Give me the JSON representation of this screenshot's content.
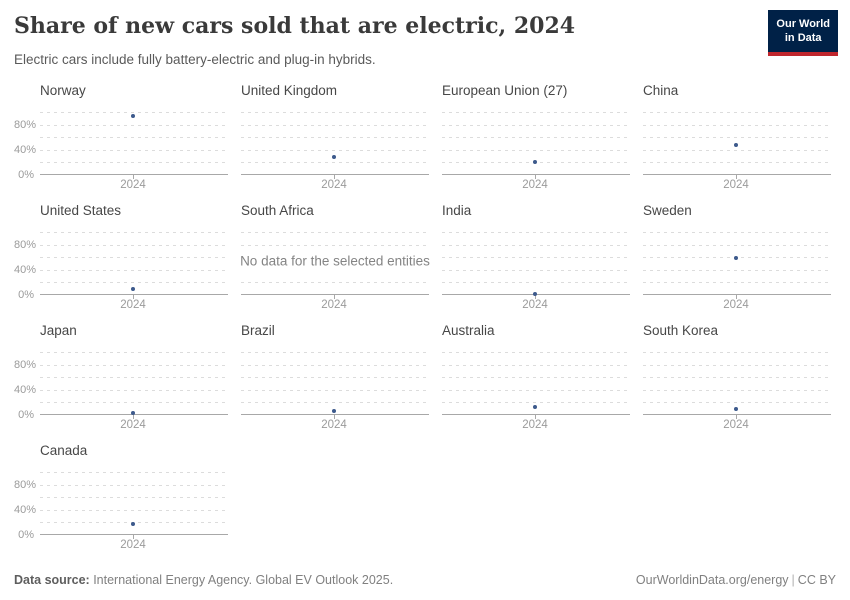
{
  "header": {
    "title": "Share of new cars sold that are electric, 2024",
    "subtitle": "Electric cars include fully battery-electric and plug-in hybrids.",
    "logo": {
      "line1": "Our World",
      "line2": "in Data",
      "bg": "#002147",
      "accent": "#c0262d"
    }
  },
  "chart_data": {
    "type": "scatter",
    "title": "Share of new cars sold that are electric, 2024",
    "x": [
      "2024"
    ],
    "xlabel": "",
    "ylabel": "",
    "ylim": [
      0,
      100
    ],
    "grid": "dashed, every 20%",
    "yticks": [
      {
        "label": "80%",
        "value": 80
      },
      {
        "label": "40%",
        "value": 40
      },
      {
        "label": "0%",
        "value": 0
      }
    ],
    "no_data_text": "No data for the selected entities",
    "facets": [
      {
        "title": "Norway",
        "year": "2024",
        "value": 93
      },
      {
        "title": "United Kingdom",
        "year": "2024",
        "value": 28
      },
      {
        "title": "European Union (27)",
        "year": "2024",
        "value": 21
      },
      {
        "title": "China",
        "year": "2024",
        "value": 48
      },
      {
        "title": "United States",
        "year": "2024",
        "value": 10
      },
      {
        "title": "South Africa",
        "year": "2024",
        "value": null
      },
      {
        "title": "India",
        "year": "2024",
        "value": 2
      },
      {
        "title": "Sweden",
        "year": "2024",
        "value": 58
      },
      {
        "title": "Japan",
        "year": "2024",
        "value": 3
      },
      {
        "title": "Brazil",
        "year": "2024",
        "value": 7
      },
      {
        "title": "Australia",
        "year": "2024",
        "value": 13
      },
      {
        "title": "South Korea",
        "year": "2024",
        "value": 9
      },
      {
        "title": "Canada",
        "year": "2024",
        "value": 17
      }
    ],
    "colors": {
      "point": "#3d5a8c",
      "grid": "#dcdcdc",
      "axis": "#a8a8a8"
    }
  },
  "footer": {
    "source_label": "Data source:",
    "source_text": " International Energy Agency. Global EV Outlook 2025.",
    "url": "OurWorldinData.org/energy",
    "separator": "|",
    "license": "CC BY"
  }
}
